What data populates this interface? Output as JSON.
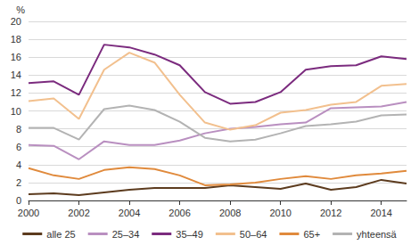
{
  "chart_data": {
    "type": "line",
    "ylabel": "%",
    "x": [
      2000,
      2001,
      2002,
      2003,
      2004,
      2005,
      2006,
      2007,
      2008,
      2009,
      2010,
      2011,
      2012,
      2013,
      2014,
      2015
    ],
    "xlim": [
      2000,
      2015
    ],
    "xticks": [
      2000,
      2002,
      2004,
      2006,
      2008,
      2010,
      2012,
      2014
    ],
    "ylim": [
      0,
      20
    ],
    "yticks": [
      0,
      2,
      4,
      6,
      8,
      10,
      12,
      14,
      16,
      18,
      20
    ],
    "grid": true,
    "legend": "bottom",
    "series": [
      {
        "name": "alle 25",
        "color": "#5c3b1e",
        "values": [
          0.7,
          0.8,
          0.6,
          0.9,
          1.2,
          1.4,
          1.4,
          1.4,
          1.7,
          1.5,
          1.3,
          1.9,
          1.2,
          1.5,
          2.3,
          1.9
        ]
      },
      {
        "name": "25–34",
        "color": "#b98fc0",
        "values": [
          6.2,
          6.1,
          4.6,
          6.6,
          6.2,
          6.2,
          6.7,
          7.5,
          8.0,
          8.2,
          8.5,
          8.7,
          10.3,
          10.4,
          10.5,
          11.0
        ]
      },
      {
        "name": "35–49",
        "color": "#7b2b7e",
        "values": [
          13.1,
          13.3,
          11.8,
          17.4,
          17.1,
          16.3,
          15.1,
          12.1,
          10.8,
          11.0,
          12.1,
          14.6,
          15.0,
          15.1,
          16.1,
          15.8
        ]
      },
      {
        "name": "50–64",
        "color": "#f2c08e",
        "values": [
          11.1,
          11.4,
          9.1,
          14.6,
          16.5,
          15.4,
          11.8,
          8.7,
          7.9,
          8.4,
          9.8,
          10.1,
          10.7,
          11.0,
          12.8,
          13.0
        ]
      },
      {
        "name": "65+",
        "color": "#e08a3c",
        "values": [
          3.6,
          2.8,
          2.4,
          3.4,
          3.7,
          3.5,
          2.8,
          1.7,
          1.8,
          2.0,
          2.4,
          2.7,
          2.4,
          2.8,
          3.0,
          3.3
        ]
      },
      {
        "name": "yhteensä",
        "color": "#b3b3b3",
        "values": [
          8.1,
          8.1,
          6.8,
          10.2,
          10.6,
          10.1,
          8.8,
          7.0,
          6.6,
          6.8,
          7.5,
          8.3,
          8.5,
          8.8,
          9.5,
          9.6
        ]
      }
    ]
  }
}
